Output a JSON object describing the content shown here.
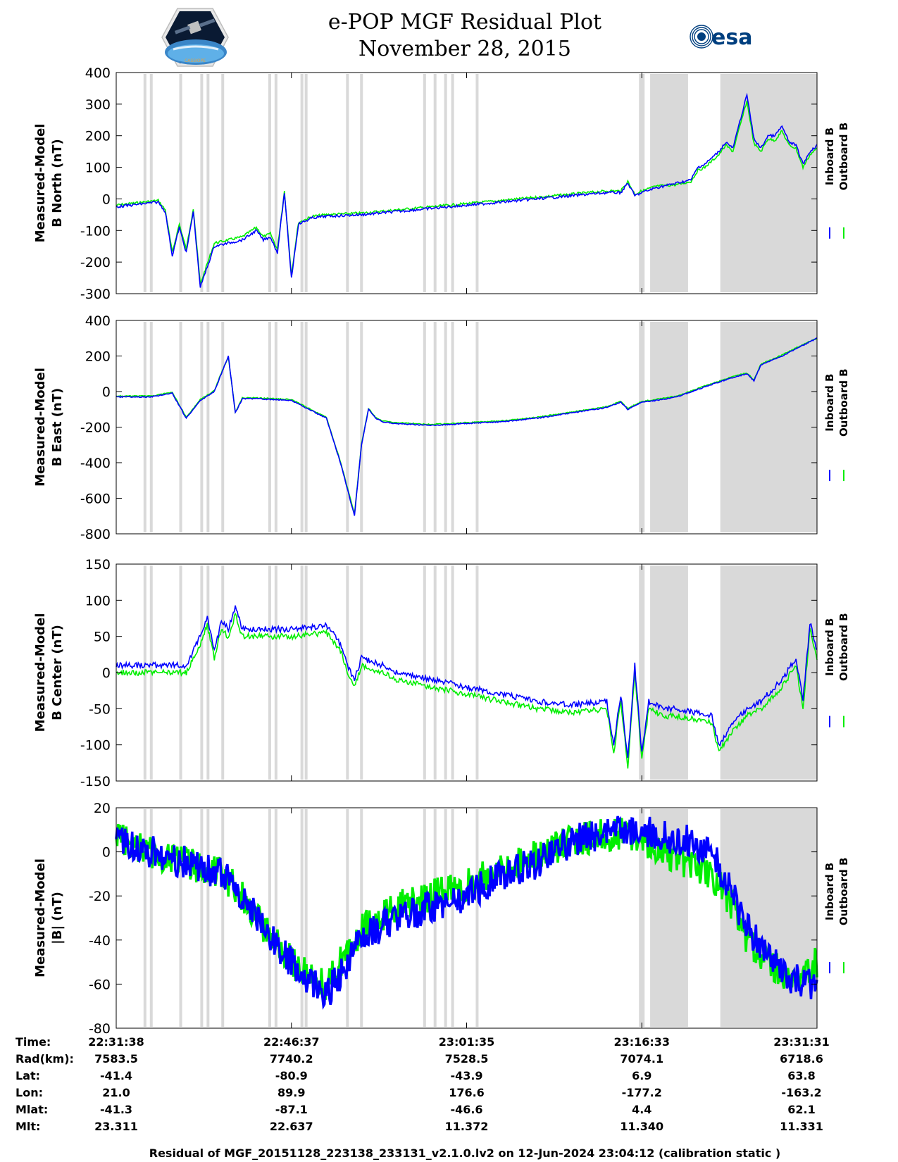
{
  "header": {
    "title": "e-POP MGF Residual Plot",
    "date": "November 28, 2015",
    "logo_left": "CASSIOPE",
    "logo_right": "esa"
  },
  "colors": {
    "inboard": "#0000ff",
    "outboard": "#00ee00",
    "shade": "#d9d9d9"
  },
  "chart_data": [
    {
      "type": "line",
      "ylabel": [
        "Measured-Model",
        "B North (nT)"
      ],
      "ylim": [
        -300,
        400
      ],
      "yticks": [
        "400",
        "300",
        "200",
        "100",
        "0",
        "-100",
        "-200",
        "-300"
      ],
      "legend": [
        "Inboard B",
        "Outboard B"
      ],
      "x": [
        0,
        2,
        4,
        6,
        7,
        8,
        9,
        10,
        11,
        12,
        14,
        16,
        18,
        20,
        21,
        22,
        23,
        24,
        25,
        26,
        28,
        30,
        35,
        40,
        45,
        50,
        55,
        60,
        65,
        70,
        72,
        73,
        74,
        75,
        77,
        80,
        82,
        83,
        84,
        85,
        86,
        87,
        88,
        90,
        91,
        92,
        93,
        94,
        95,
        96,
        97,
        98,
        99,
        100
      ],
      "series": [
        {
          "name": "Inboard B",
          "values": [
            -25,
            -20,
            -15,
            -10,
            -40,
            -180,
            -90,
            -170,
            -40,
            -280,
            -150,
            -140,
            -130,
            -100,
            -130,
            -120,
            -170,
            20,
            -250,
            -80,
            -60,
            -55,
            -50,
            -40,
            -30,
            -20,
            -10,
            0,
            10,
            20,
            20,
            50,
            10,
            20,
            35,
            50,
            60,
            100,
            110,
            130,
            150,
            180,
            160,
            330,
            190,
            160,
            200,
            200,
            230,
            180,
            170,
            110,
            150,
            170
          ]
        },
        {
          "name": "Outboard B",
          "values": [
            -20,
            -15,
            -10,
            -5,
            -35,
            -170,
            -80,
            -160,
            -30,
            -270,
            -140,
            -130,
            -120,
            -90,
            -120,
            -110,
            -160,
            25,
            -240,
            -75,
            -55,
            -50,
            -45,
            -35,
            -25,
            -15,
            -5,
            5,
            15,
            25,
            25,
            55,
            15,
            25,
            40,
            45,
            55,
            90,
            100,
            120,
            140,
            170,
            150,
            310,
            175,
            150,
            190,
            185,
            215,
            170,
            160,
            100,
            140,
            160
          ]
        }
      ]
    },
    {
      "type": "line",
      "ylabel": [
        "Measured-Model",
        "B East (nT)"
      ],
      "ylim": [
        -800,
        400
      ],
      "yticks": [
        "400",
        "200",
        "0",
        "-200",
        "-400",
        "-600",
        "-800"
      ],
      "legend": [
        "Inboard B",
        "Outboard B"
      ],
      "x": [
        0,
        5,
        8,
        10,
        12,
        14,
        15,
        16,
        17,
        18,
        20,
        25,
        30,
        32,
        34,
        35,
        36,
        37,
        38,
        40,
        45,
        50,
        55,
        60,
        65,
        70,
        72,
        73,
        74,
        75,
        77,
        80,
        85,
        88,
        90,
        91,
        92,
        95,
        98,
        100
      ],
      "series": [
        {
          "name": "Inboard B",
          "values": [
            -30,
            -30,
            -10,
            -150,
            -50,
            0,
            100,
            200,
            -120,
            -40,
            -40,
            -50,
            -150,
            -400,
            -700,
            -300,
            -100,
            -150,
            -170,
            -180,
            -190,
            -180,
            -170,
            -150,
            -120,
            -90,
            -60,
            -100,
            -80,
            -60,
            -50,
            -30,
            40,
            80,
            100,
            60,
            150,
            200,
            260,
            300
          ]
        },
        {
          "name": "Outboard B",
          "values": [
            -25,
            -25,
            -5,
            -145,
            -45,
            5,
            105,
            195,
            -115,
            -35,
            -35,
            -45,
            -145,
            -395,
            -690,
            -295,
            -95,
            -145,
            -165,
            -175,
            -185,
            -175,
            -165,
            -145,
            -115,
            -85,
            -55,
            -95,
            -75,
            -55,
            -45,
            -25,
            45,
            85,
            105,
            65,
            155,
            205,
            265,
            300
          ]
        }
      ]
    },
    {
      "type": "line",
      "ylabel": [
        "Measured-Model",
        "B Center (nT)"
      ],
      "ylim": [
        -150,
        150
      ],
      "yticks": [
        "150",
        "100",
        "50",
        "0",
        "-50",
        "-100",
        "-150"
      ],
      "legend": [
        "Inboard B",
        "Outboard B"
      ],
      "x": [
        0,
        5,
        10,
        12,
        13,
        14,
        15,
        16,
        17,
        18,
        20,
        25,
        30,
        32,
        33,
        34,
        35,
        38,
        40,
        45,
        50,
        55,
        60,
        65,
        70,
        71,
        72,
        73,
        74,
        75,
        76,
        78,
        80,
        85,
        86,
        88,
        90,
        92,
        95,
        97,
        98,
        99,
        100
      ],
      "series": [
        {
          "name": "Inboard B",
          "values": [
            10,
            10,
            10,
            50,
            75,
            30,
            70,
            60,
            90,
            60,
            60,
            60,
            65,
            40,
            10,
            -10,
            20,
            10,
            0,
            -10,
            -20,
            -30,
            -40,
            -45,
            -40,
            -100,
            -30,
            -120,
            10,
            -110,
            -40,
            -50,
            -50,
            -60,
            -100,
            -70,
            -50,
            -40,
            -10,
            20,
            -40,
            70,
            30
          ]
        },
        {
          "name": "Outboard B",
          "values": [
            0,
            0,
            0,
            40,
            65,
            20,
            60,
            50,
            80,
            50,
            50,
            50,
            55,
            30,
            0,
            -20,
            10,
            0,
            -10,
            -20,
            -30,
            -40,
            -50,
            -55,
            -50,
            -110,
            -40,
            -130,
            0,
            -120,
            -50,
            -60,
            -60,
            -70,
            -110,
            -80,
            -60,
            -50,
            -20,
            10,
            -50,
            60,
            20
          ]
        }
      ]
    },
    {
      "type": "line",
      "ylabel": [
        "Measured-Model",
        "|B| (nT)"
      ],
      "ylim": [
        -80,
        20
      ],
      "yticks": [
        "20",
        "0",
        "-20",
        "-40",
        "-60",
        "-80"
      ],
      "legend": [
        "Inboard B",
        "Outboard B"
      ],
      "x": [
        0,
        5,
        10,
        15,
        18,
        20,
        25,
        28,
        30,
        33,
        35,
        40,
        45,
        50,
        55,
        60,
        65,
        70,
        72,
        75,
        78,
        80,
        82,
        85,
        88,
        90,
        95,
        98,
        100
      ],
      "series": [
        {
          "name": "Inboard B",
          "values": [
            5,
            0,
            -5,
            -10,
            -20,
            -30,
            -50,
            -60,
            -65,
            -50,
            -40,
            -30,
            -25,
            -20,
            -10,
            -5,
            5,
            8,
            10,
            10,
            8,
            5,
            5,
            0,
            -20,
            -35,
            -55,
            -60,
            -60
          ]
        },
        {
          "name": "Outboard B",
          "values": [
            8,
            0,
            -5,
            -10,
            -20,
            -30,
            -50,
            -58,
            -60,
            -45,
            -35,
            -25,
            -20,
            -15,
            -8,
            -2,
            5,
            8,
            8,
            5,
            0,
            -5,
            -5,
            -10,
            -25,
            -40,
            -55,
            -55,
            -50
          ]
        }
      ]
    }
  ],
  "timeline": {
    "rows": [
      {
        "label": "Time:",
        "values": [
          "22:31:38",
          "22:46:37",
          "23:01:35",
          "23:16:33",
          "23:31:31"
        ]
      },
      {
        "label": "Rad(km):",
        "values": [
          "7583.5",
          "7740.2",
          "7528.5",
          "7074.1",
          "6718.6"
        ]
      },
      {
        "label": "Lat:",
        "values": [
          "-41.4",
          "-80.9",
          "-43.9",
          "6.9",
          "63.8"
        ]
      },
      {
        "label": "Lon:",
        "values": [
          "21.0",
          "89.9",
          "176.6",
          "-177.2",
          "-163.2"
        ]
      },
      {
        "label": "Mlat:",
        "values": [
          "-41.3",
          "-87.1",
          "-46.6",
          "4.4",
          "62.1"
        ]
      },
      {
        "label": "Mlt:",
        "values": [
          "23.311",
          "22.637",
          "11.372",
          "11.340",
          "11.331"
        ]
      }
    ]
  },
  "caption": "Residual of MGF_20151128_223138_233131_v2.1.0.lv2 on 12-Jun-2024 23:04:12 (calibration static )"
}
